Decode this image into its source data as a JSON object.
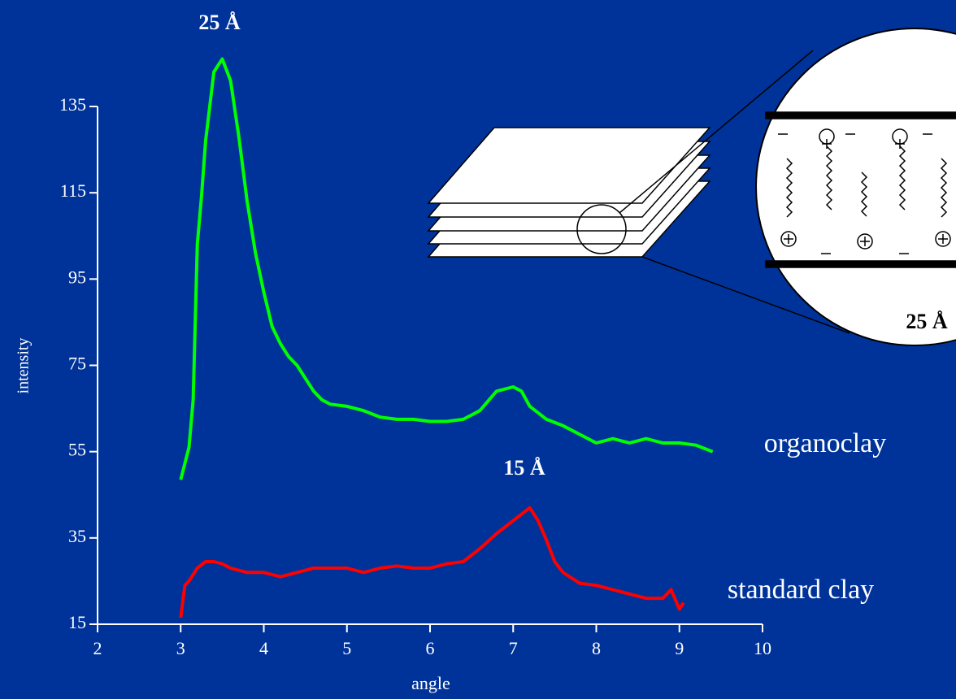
{
  "chart_data": {
    "type": "line",
    "x_label": "angle",
    "y_label": "intensity",
    "xlim": [
      2,
      10
    ],
    "xticks": [
      2,
      3,
      4,
      5,
      6,
      7,
      8,
      9,
      10
    ],
    "ylim": [
      15,
      135
    ],
    "yticks": [
      15,
      35,
      55,
      75,
      95,
      115,
      135
    ],
    "series": [
      {
        "name": "organoclay",
        "color": "#00ff00",
        "x": [
          3.0,
          3.1,
          3.15,
          3.2,
          3.25,
          3.3,
          3.4,
          3.5,
          3.6,
          3.7,
          3.8,
          3.9,
          4.0,
          4.1,
          4.2,
          4.3,
          4.4,
          4.5,
          4.6,
          4.7,
          4.8,
          5.0,
          5.2,
          5.4,
          5.6,
          5.8,
          6.0,
          6.2,
          6.4,
          6.6,
          6.8,
          7.0,
          7.1,
          7.2,
          7.4,
          7.6,
          7.8,
          8.0,
          8.2,
          8.4,
          8.6,
          8.8,
          9.0,
          9.2,
          9.4
        ],
        "values": [
          48.5,
          56,
          67,
          103,
          114,
          127,
          143,
          146,
          141,
          128,
          113,
          101,
          92,
          84,
          80,
          77,
          75,
          72,
          69,
          67,
          66,
          65.5,
          64.5,
          63,
          62.5,
          62.5,
          62,
          62,
          62.5,
          64.5,
          69,
          70,
          69,
          65.5,
          62.5,
          61,
          59,
          57,
          58,
          57,
          58,
          57,
          57,
          56.5,
          55
        ]
      },
      {
        "name": "standard clay",
        "color": "#ff0000",
        "x": [
          3.0,
          3.05,
          3.1,
          3.2,
          3.3,
          3.4,
          3.5,
          3.6,
          3.8,
          4.0,
          4.2,
          4.4,
          4.6,
          4.8,
          5.0,
          5.2,
          5.4,
          5.6,
          5.8,
          6.0,
          6.2,
          6.4,
          6.6,
          6.8,
          7.0,
          7.2,
          7.3,
          7.4,
          7.5,
          7.6,
          7.8,
          8.0,
          8.2,
          8.4,
          8.6,
          8.8,
          8.9,
          9.0,
          9.05
        ],
        "values": [
          16.5,
          24,
          25,
          28,
          29.5,
          29.5,
          29,
          28,
          27,
          27,
          26,
          27,
          28,
          28,
          28,
          27,
          28,
          28.5,
          28,
          28,
          29,
          29.5,
          32.5,
          36,
          39,
          42,
          39,
          34.5,
          29.5,
          27,
          24.5,
          24,
          23,
          22,
          21,
          21,
          23,
          18.5,
          20
        ]
      }
    ],
    "annotations": [
      "25 Å",
      "15 Å"
    ],
    "inset_label": "25 Å"
  }
}
